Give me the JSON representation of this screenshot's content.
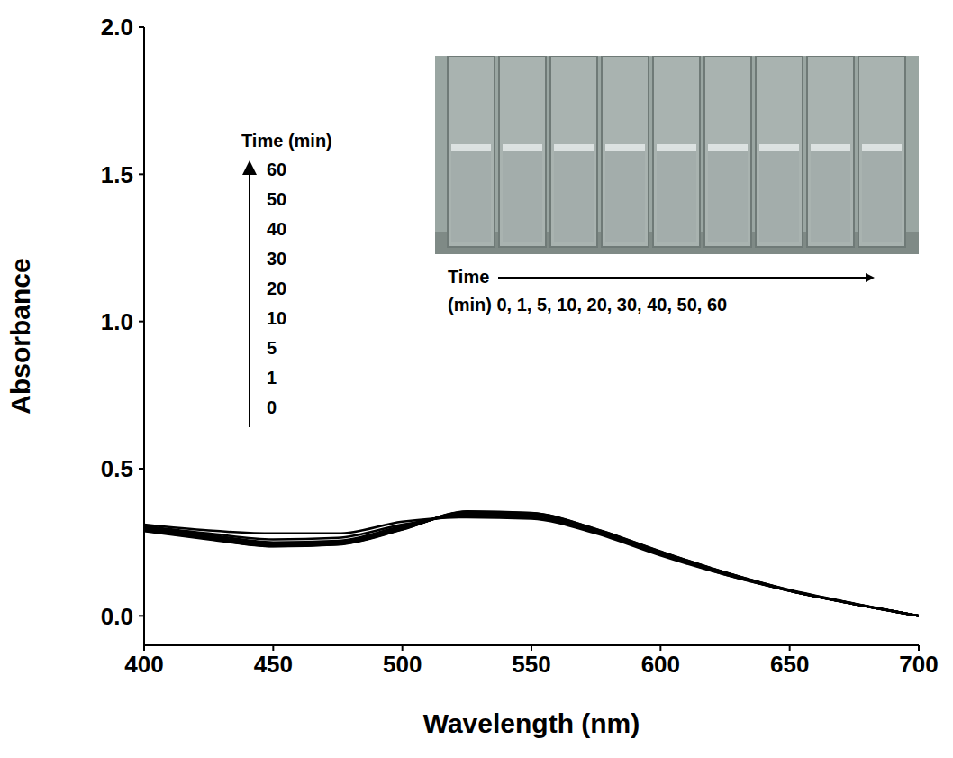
{
  "chart_data": {
    "type": "line",
    "x_label": "Wavelength (nm)",
    "y_label": "Absorbance",
    "x": [
      400,
      425,
      450,
      475,
      500,
      525,
      550,
      575,
      600,
      625,
      650,
      675,
      700
    ],
    "series": [
      {
        "name": "0",
        "color": "#000000",
        "values": [
          0.31,
          0.29,
          0.28,
          0.28,
          0.32,
          0.335,
          0.33,
          0.28,
          0.205,
          0.14,
          0.085,
          0.04,
          0.0
        ]
      },
      {
        "name": "1",
        "color": "#000000",
        "values": [
          0.305,
          0.28,
          0.26,
          0.265,
          0.31,
          0.34,
          0.335,
          0.285,
          0.21,
          0.14,
          0.085,
          0.04,
          0.0
        ]
      },
      {
        "name": "5",
        "color": "#000000",
        "values": [
          0.3,
          0.275,
          0.25,
          0.255,
          0.305,
          0.345,
          0.34,
          0.287,
          0.212,
          0.143,
          0.085,
          0.04,
          0.0
        ]
      },
      {
        "name": "10",
        "color": "#000000",
        "values": [
          0.3,
          0.27,
          0.245,
          0.25,
          0.3,
          0.348,
          0.343,
          0.29,
          0.214,
          0.145,
          0.085,
          0.04,
          0.0
        ]
      },
      {
        "name": "20",
        "color": "#000000",
        "values": [
          0.295,
          0.268,
          0.243,
          0.248,
          0.298,
          0.35,
          0.345,
          0.29,
          0.215,
          0.145,
          0.086,
          0.04,
          0.0
        ]
      },
      {
        "name": "30",
        "color": "#000000",
        "values": [
          0.295,
          0.265,
          0.24,
          0.245,
          0.296,
          0.352,
          0.347,
          0.292,
          0.216,
          0.146,
          0.086,
          0.041,
          0.0
        ]
      },
      {
        "name": "40",
        "color": "#000000",
        "values": [
          0.29,
          0.263,
          0.238,
          0.244,
          0.295,
          0.353,
          0.348,
          0.293,
          0.217,
          0.147,
          0.087,
          0.041,
          0.0
        ]
      },
      {
        "name": "50",
        "color": "#000000",
        "values": [
          0.29,
          0.262,
          0.237,
          0.243,
          0.294,
          0.354,
          0.349,
          0.294,
          0.218,
          0.147,
          0.087,
          0.041,
          0.0
        ]
      },
      {
        "name": "60",
        "color": "#000000",
        "values": [
          0.288,
          0.26,
          0.236,
          0.242,
          0.293,
          0.355,
          0.35,
          0.295,
          0.219,
          0.148,
          0.088,
          0.042,
          0.0
        ]
      }
    ],
    "xlim": [
      400,
      700
    ],
    "xticks": [
      400,
      450,
      500,
      550,
      600,
      650,
      700
    ],
    "ylim": [
      -0.1,
      2.0
    ],
    "yticks": [
      {
        "value": 0,
        "label": "0.0"
      },
      {
        "value": 0.5,
        "label": "0.5"
      },
      {
        "value": 1,
        "label": "1.0"
      },
      {
        "value": 1.5,
        "label": "1.5"
      },
      {
        "value": 2,
        "label": "2.0"
      }
    ],
    "legend": "upper left",
    "annotations": [
      "Time (min)",
      "Time",
      "(min) 0, 1, 5, 10, 20, 30, 40, 50, 60"
    ],
    "grid": false
  }
}
